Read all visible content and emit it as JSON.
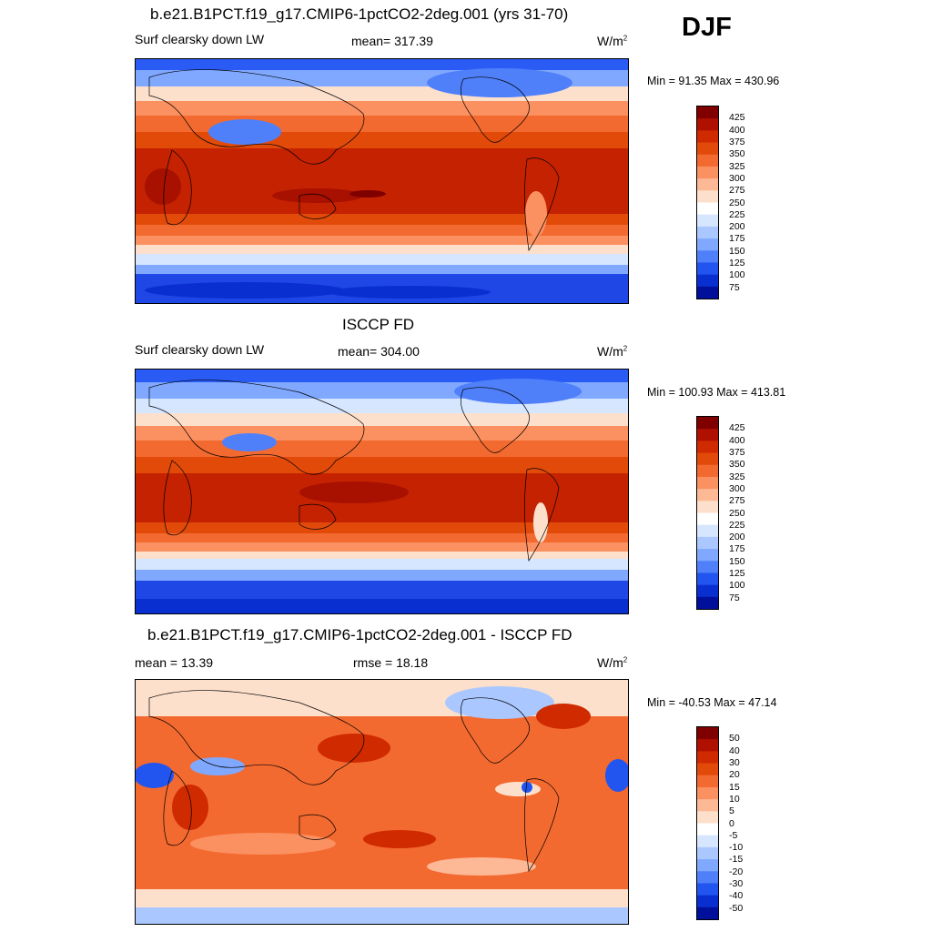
{
  "season": "DJF",
  "units_base": "W/m",
  "units_exp": "2",
  "panels": [
    {
      "title": "b.e21.B1PCT.f19_g17.CMIP6-1pctCO2-2deg.001 (yrs 31-70)",
      "left_label": "Surf clearsky down LW",
      "center_label": "mean= 317.39",
      "minmax": "Min =  91.35 Max = 430.96",
      "colorbar": {
        "ticks": [
          "425",
          "400",
          "375",
          "350",
          "325",
          "300",
          "275",
          "250",
          "225",
          "200",
          "175",
          "150",
          "125",
          "100",
          "75"
        ],
        "colors": [
          "#800000",
          "#b01000",
          "#d02a00",
          "#e24a0a",
          "#f36a30",
          "#fb9060",
          "#fdb896",
          "#fde0cc",
          "#ffffff",
          "#d6e6ff",
          "#aac8ff",
          "#80a8ff",
          "#4f80fa",
          "#2255f0",
          "#0a2fd0",
          "#00109a"
        ]
      }
    },
    {
      "title": "ISCCP FD",
      "left_label": "Surf clearsky down LW",
      "center_label": "mean= 304.00",
      "minmax": "Min = 100.93 Max = 413.81",
      "colorbar": {
        "ticks": [
          "425",
          "400",
          "375",
          "350",
          "325",
          "300",
          "275",
          "250",
          "225",
          "200",
          "175",
          "150",
          "125",
          "100",
          "75"
        ],
        "colors": [
          "#800000",
          "#b01000",
          "#d02a00",
          "#e24a0a",
          "#f36a30",
          "#fb9060",
          "#fdb896",
          "#fde0cc",
          "#ffffff",
          "#d6e6ff",
          "#aac8ff",
          "#80a8ff",
          "#4f80fa",
          "#2255f0",
          "#0a2fd0",
          "#00109a"
        ]
      }
    },
    {
      "title": "b.e21.B1PCT.f19_g17.CMIP6-1pctCO2-2deg.001 - ISCCP FD",
      "left_label": "mean =  13.39",
      "center_label": "rmse =  18.18",
      "minmax": "Min = -40.53 Max =  47.14",
      "colorbar": {
        "ticks": [
          "50",
          "40",
          "30",
          "20",
          "15",
          "10",
          "5",
          "0",
          "-5",
          "-10",
          "-15",
          "-20",
          "-30",
          "-40",
          "-50"
        ],
        "colors": [
          "#800000",
          "#b01000",
          "#d02a00",
          "#e24a0a",
          "#f36a30",
          "#fb9060",
          "#fdb896",
          "#fde0cc",
          "#ffffff",
          "#d6e6ff",
          "#aac8ff",
          "#80a8ff",
          "#4f80fa",
          "#2255f0",
          "#0a2fd0",
          "#00109a"
        ]
      }
    }
  ]
}
